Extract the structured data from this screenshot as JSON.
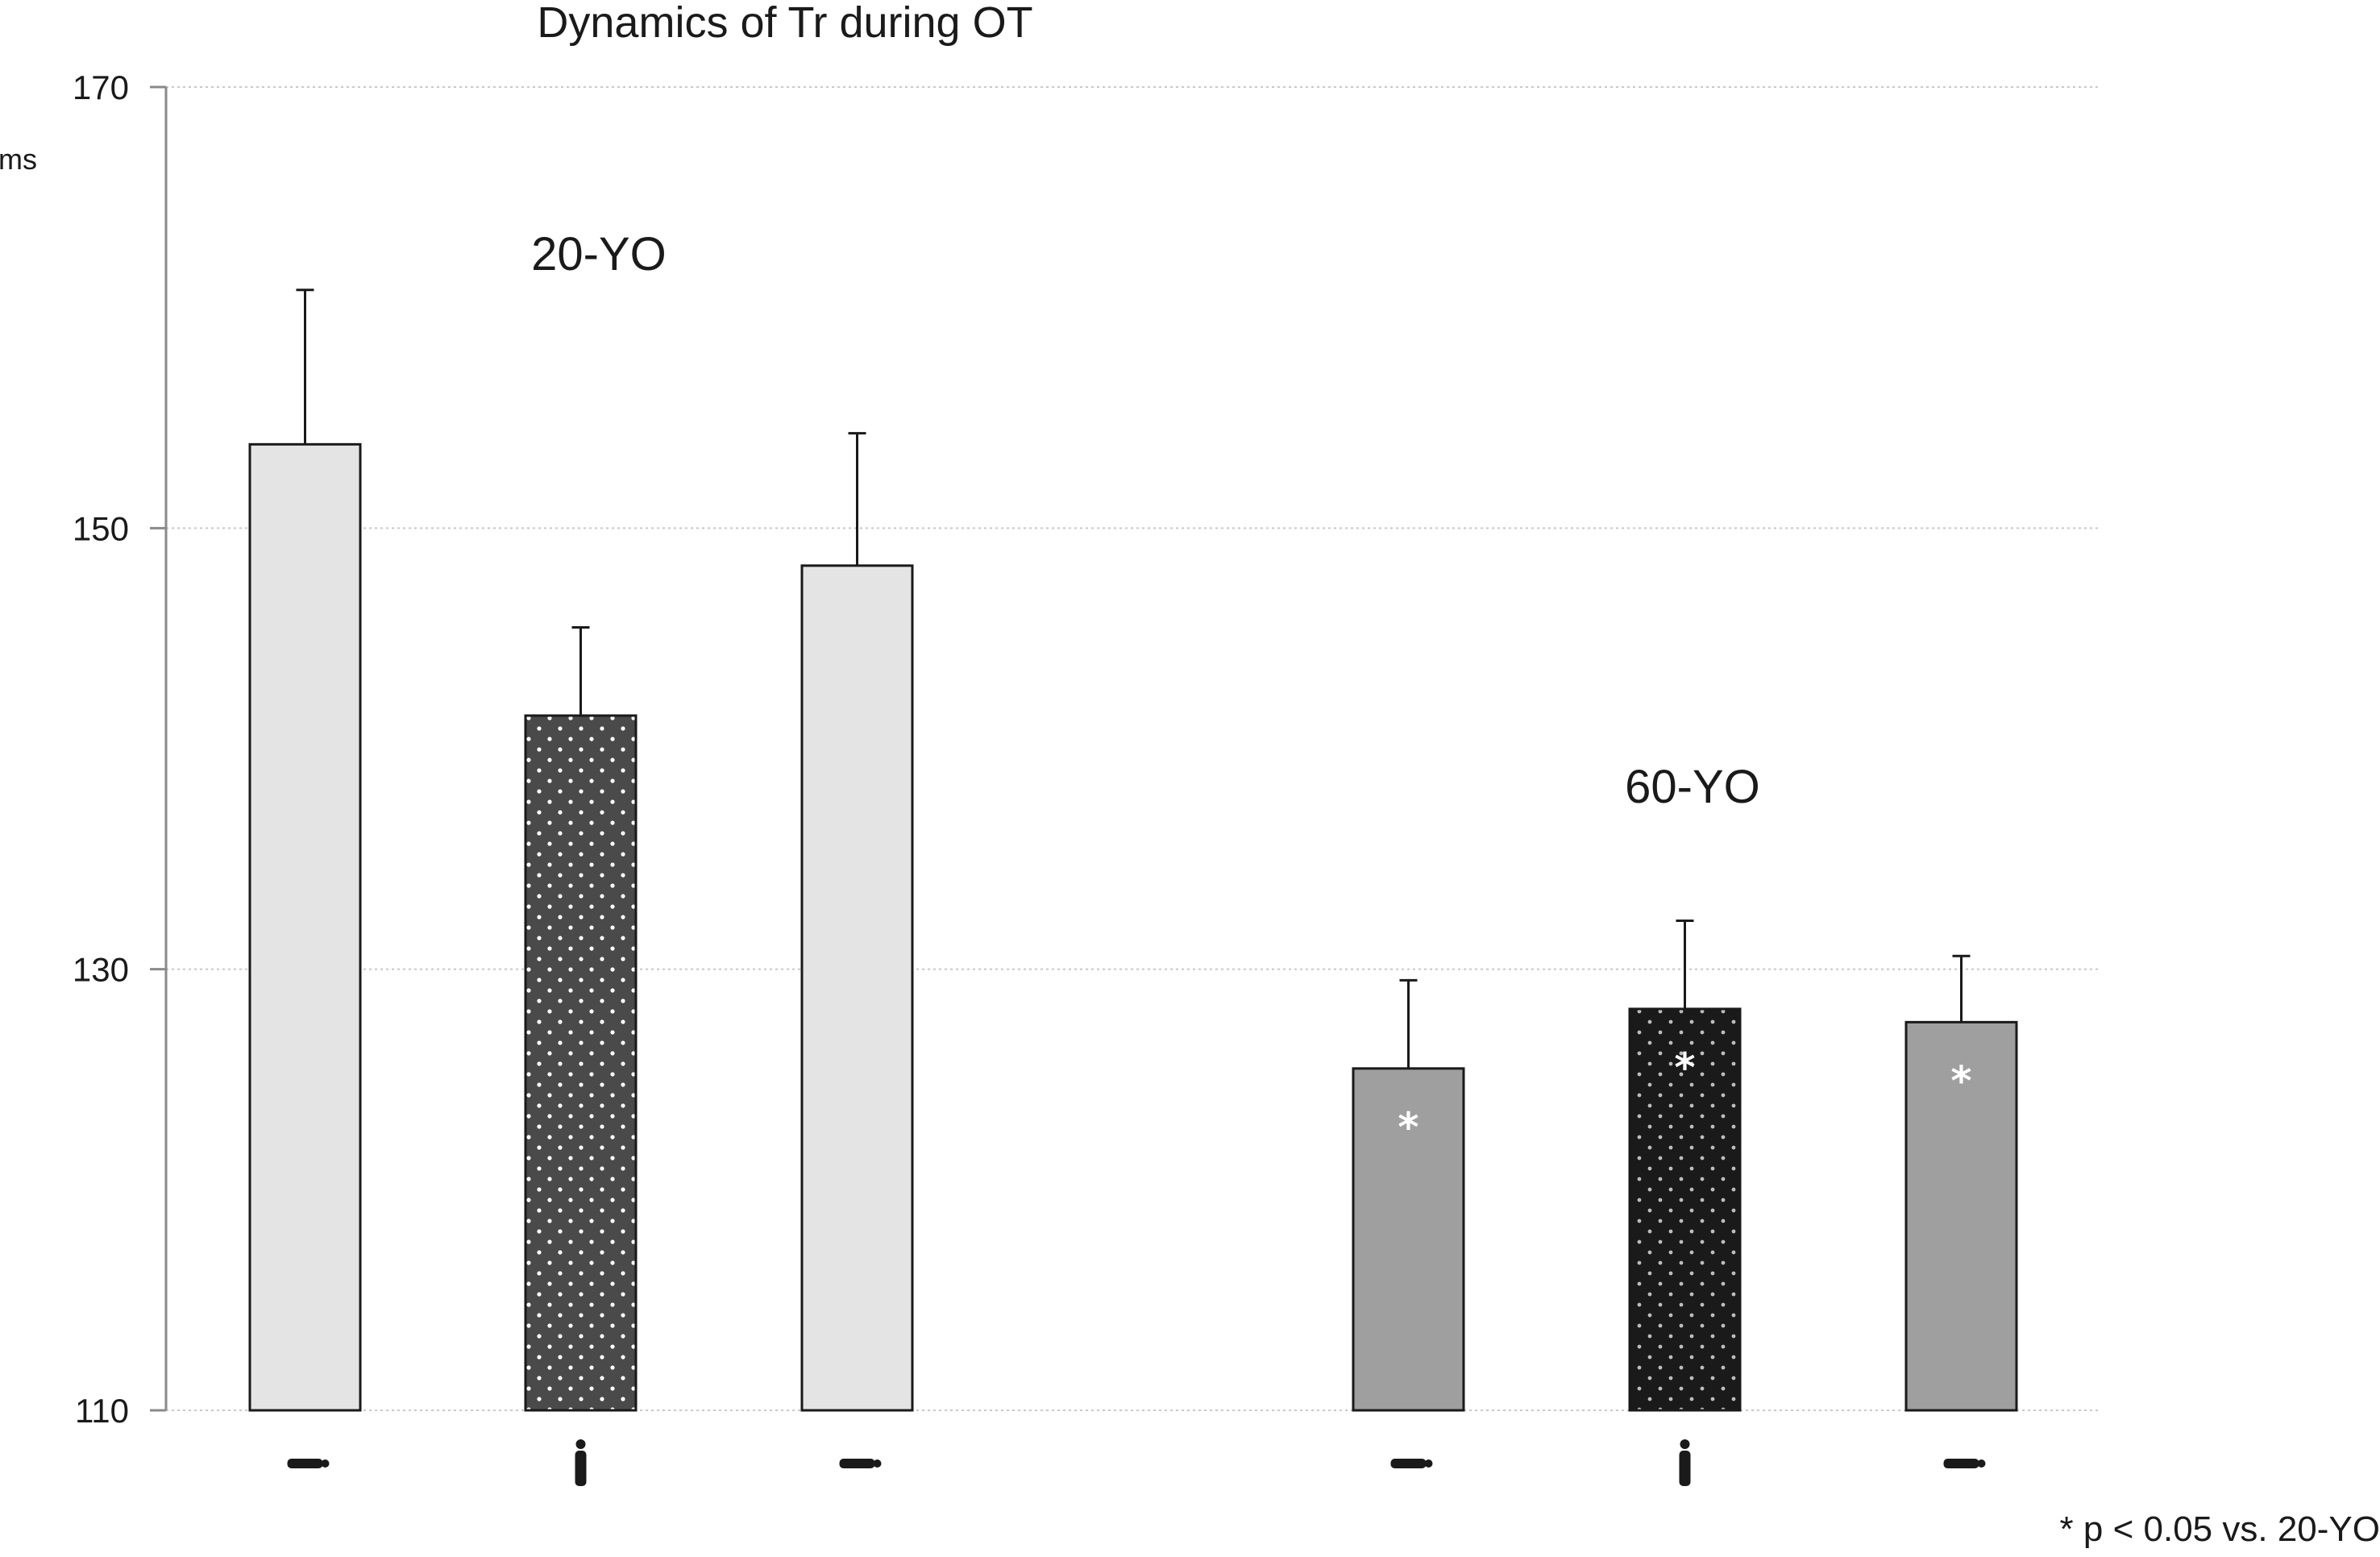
{
  "chart_data": {
    "type": "bar",
    "title": "Dynamics of Tr during OT",
    "ylabel": "ms",
    "ylim": [
      110,
      170
    ],
    "yticks": [
      110,
      130,
      150,
      170
    ],
    "grid": true,
    "groups": [
      {
        "label": "20-YO",
        "bars": [
          {
            "value": 153.8,
            "error": 7.0,
            "color": "#e4e4e4",
            "pattern": "none",
            "posture": "horizontal",
            "significant": false
          },
          {
            "value": 141.5,
            "error": 4.0,
            "color": "#4a4a4a",
            "pattern": "dots",
            "posture": "vertical",
            "significant": false
          },
          {
            "value": 148.3,
            "error": 6.0,
            "color": "#e4e4e4",
            "pattern": "none",
            "posture": "horizontal",
            "significant": false
          }
        ]
      },
      {
        "label": "60-YO",
        "bars": [
          {
            "value": 125.5,
            "error": 4.0,
            "color": "#9f9f9f",
            "pattern": "none",
            "posture": "horizontal",
            "significant": true
          },
          {
            "value": 128.2,
            "error": 4.0,
            "color": "#1a1a1a",
            "pattern": "dots",
            "posture": "vertical",
            "significant": true
          },
          {
            "value": 127.6,
            "error": 3.0,
            "color": "#9f9f9f",
            "pattern": "none",
            "posture": "horizontal",
            "significant": true
          }
        ]
      }
    ],
    "significance_marker": "*",
    "footnote": "* p < 0.05 vs. 20-YO"
  }
}
